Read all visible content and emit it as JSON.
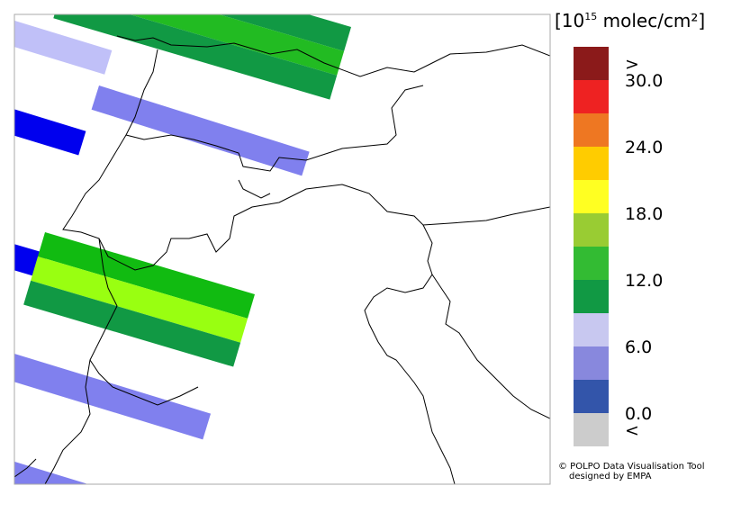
{
  "colorbar": {
    "title_prefix": "[10",
    "title_exponent": "15",
    "title_suffix": " molec/cm²]",
    "colors": [
      "#8b1a1a",
      "#ee2222",
      "#ee7722",
      "#ffcc00",
      "#ffff22",
      "#99cc33",
      "#33bb33",
      "#119944",
      "#c8c8f0",
      "#8888dd",
      "#3355aa",
      "#cccccc"
    ],
    "labels": [
      ">",
      "30.0",
      "24.0",
      "18.0",
      "12.0",
      "6.0",
      "0.0",
      "<"
    ]
  },
  "credit": {
    "line1": "© POLPO Data Visualisation Tool",
    "line2": "designed by EMPA"
  }
}
